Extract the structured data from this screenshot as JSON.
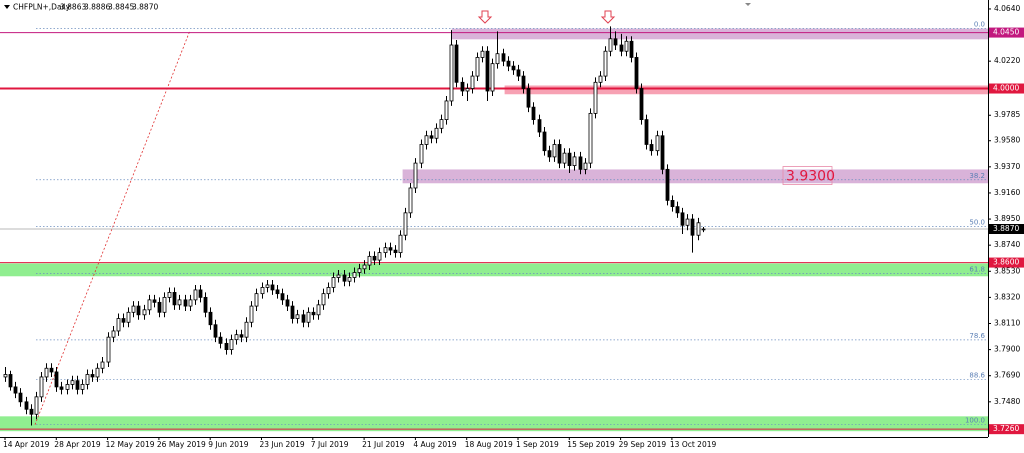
{
  "chart_data": {
    "type": "candlestick",
    "title": "CHFPLN+,Daily",
    "header_quote": [
      "3.8863",
      "3.8886",
      "3.8845",
      "3.8870"
    ],
    "categories": [
      "14 Apr 2019",
      null,
      null,
      null,
      null,
      null,
      null,
      null,
      null,
      null,
      "28 Apr 2019",
      null,
      null,
      null,
      null,
      null,
      null,
      null,
      null,
      null,
      "12 May 2019",
      null,
      null,
      null,
      null,
      null,
      null,
      null,
      null,
      null,
      "26 May 2019",
      null,
      null,
      null,
      null,
      null,
      null,
      null,
      null,
      null,
      "9 Jun 2019",
      null,
      null,
      null,
      null,
      null,
      null,
      null,
      null,
      null,
      "23 Jun 2019",
      null,
      null,
      null,
      null,
      null,
      null,
      null,
      null,
      null,
      "7 Jul 2019",
      null,
      null,
      null,
      null,
      null,
      null,
      null,
      null,
      null,
      "21 Jul 2019",
      null,
      null,
      null,
      null,
      null,
      null,
      null,
      null,
      null,
      "4 Aug 2019",
      null,
      null,
      null,
      null,
      null,
      null,
      null,
      null,
      null,
      "18 Aug 2019",
      null,
      null,
      null,
      null,
      null,
      null,
      null,
      null,
      null,
      "1 Sep 2019",
      null,
      null,
      null,
      null,
      null,
      null,
      null,
      null,
      null,
      "15 Sep 2019",
      null,
      null,
      null,
      null,
      null,
      null,
      null,
      null,
      null,
      "29 Sep 2019",
      null,
      null,
      null,
      null,
      null,
      null,
      null,
      null,
      null,
      "13 Oct 2019",
      null,
      null,
      null,
      null,
      null,
      null
    ],
    "ohlc": [
      [
        3.768,
        3.776,
        3.764,
        3.77
      ],
      [
        3.77,
        3.773,
        3.757,
        3.76
      ],
      [
        3.76,
        3.764,
        3.751,
        3.755
      ],
      [
        3.755,
        3.759,
        3.744,
        3.748
      ],
      [
        3.748,
        3.752,
        3.738,
        3.742
      ],
      [
        3.742,
        3.746,
        3.729,
        3.738
      ],
      [
        3.738,
        3.756,
        3.734,
        3.752
      ],
      [
        3.752,
        3.772,
        3.748,
        3.768
      ],
      [
        3.768,
        3.779,
        3.764,
        3.775
      ],
      [
        3.775,
        3.779,
        3.768,
        3.772
      ],
      [
        3.772,
        3.776,
        3.756,
        3.76
      ],
      [
        3.76,
        3.764,
        3.754,
        3.758
      ],
      [
        3.758,
        3.766,
        3.754,
        3.762
      ],
      [
        3.762,
        3.769,
        3.758,
        3.765
      ],
      [
        3.765,
        3.769,
        3.754,
        3.758
      ],
      [
        3.758,
        3.766,
        3.754,
        3.762
      ],
      [
        3.762,
        3.774,
        3.758,
        3.77
      ],
      [
        3.77,
        3.774,
        3.764,
        3.768
      ],
      [
        3.768,
        3.779,
        3.764,
        3.775
      ],
      [
        3.775,
        3.784,
        3.771,
        3.78
      ],
      [
        3.78,
        3.804,
        3.776,
        3.8
      ],
      [
        3.8,
        3.809,
        3.796,
        3.805
      ],
      [
        3.805,
        3.819,
        3.801,
        3.815
      ],
      [
        3.815,
        3.819,
        3.808,
        3.812
      ],
      [
        3.812,
        3.824,
        3.808,
        3.82
      ],
      [
        3.82,
        3.829,
        3.816,
        3.825
      ],
      [
        3.825,
        3.829,
        3.814,
        3.818
      ],
      [
        3.818,
        3.826,
        3.814,
        3.822
      ],
      [
        3.822,
        3.834,
        3.818,
        3.83
      ],
      [
        3.83,
        3.834,
        3.824,
        3.828
      ],
      [
        3.828,
        3.832,
        3.816,
        3.82
      ],
      [
        3.82,
        3.836,
        3.816,
        3.832
      ],
      [
        3.832,
        3.84,
        3.828,
        3.836
      ],
      [
        3.836,
        3.84,
        3.822,
        3.826
      ],
      [
        3.826,
        3.834,
        3.822,
        3.83
      ],
      [
        3.83,
        3.834,
        3.821,
        3.825
      ],
      [
        3.825,
        3.834,
        3.821,
        3.83
      ],
      [
        3.83,
        3.842,
        3.826,
        3.838
      ],
      [
        3.838,
        3.842,
        3.828,
        3.832
      ],
      [
        3.832,
        3.836,
        3.816,
        3.82
      ],
      [
        3.82,
        3.824,
        3.806,
        3.81
      ],
      [
        3.81,
        3.814,
        3.796,
        3.8
      ],
      [
        3.8,
        3.804,
        3.791,
        3.795
      ],
      [
        3.795,
        3.799,
        3.786,
        3.79
      ],
      [
        3.79,
        3.802,
        3.786,
        3.798
      ],
      [
        3.798,
        3.806,
        3.794,
        3.802
      ],
      [
        3.802,
        3.806,
        3.796,
        3.8
      ],
      [
        3.8,
        3.816,
        3.796,
        3.812
      ],
      [
        3.812,
        3.829,
        3.808,
        3.825
      ],
      [
        3.825,
        3.839,
        3.821,
        3.835
      ],
      [
        3.835,
        3.844,
        3.831,
        3.84
      ],
      [
        3.84,
        3.846,
        3.836,
        3.842
      ],
      [
        3.842,
        3.846,
        3.834,
        3.838
      ],
      [
        3.838,
        3.842,
        3.831,
        3.835
      ],
      [
        3.835,
        3.839,
        3.826,
        3.83
      ],
      [
        3.83,
        3.834,
        3.821,
        3.825
      ],
      [
        3.825,
        3.829,
        3.811,
        3.815
      ],
      [
        3.815,
        3.822,
        3.811,
        3.818
      ],
      [
        3.818,
        3.822,
        3.808,
        3.812
      ],
      [
        3.812,
        3.824,
        3.808,
        3.82
      ],
      [
        3.82,
        3.824,
        3.814,
        3.818
      ],
      [
        3.818,
        3.83,
        3.814,
        3.826
      ],
      [
        3.826,
        3.839,
        3.822,
        3.835
      ],
      [
        3.835,
        3.844,
        3.831,
        3.84
      ],
      [
        3.84,
        3.852,
        3.836,
        3.848
      ],
      [
        3.848,
        3.854,
        3.844,
        3.85
      ],
      [
        3.85,
        3.854,
        3.841,
        3.845
      ],
      [
        3.845,
        3.852,
        3.841,
        3.848
      ],
      [
        3.848,
        3.856,
        3.844,
        3.852
      ],
      [
        3.852,
        3.859,
        3.848,
        3.855
      ],
      [
        3.855,
        3.862,
        3.851,
        3.858
      ],
      [
        3.858,
        3.869,
        3.854,
        3.865
      ],
      [
        3.865,
        3.869,
        3.858,
        3.862
      ],
      [
        3.862,
        3.872,
        3.858,
        3.868
      ],
      [
        3.868,
        3.876,
        3.864,
        3.872
      ],
      [
        3.872,
        3.876,
        3.866,
        3.87
      ],
      [
        3.87,
        3.874,
        3.864,
        3.868
      ],
      [
        3.868,
        3.886,
        3.864,
        3.882
      ],
      [
        3.882,
        3.904,
        3.878,
        3.9
      ],
      [
        3.9,
        3.924,
        3.896,
        3.92
      ],
      [
        3.92,
        3.944,
        3.916,
        3.94
      ],
      [
        3.94,
        3.959,
        3.936,
        3.955
      ],
      [
        3.955,
        3.966,
        3.951,
        3.962
      ],
      [
        3.962,
        3.966,
        3.956,
        3.96
      ],
      [
        3.96,
        3.972,
        3.956,
        3.968
      ],
      [
        3.968,
        3.979,
        3.964,
        3.975
      ],
      [
        3.975,
        3.994,
        3.971,
        3.99
      ],
      [
        3.99,
        4.047,
        3.986,
        4.035
      ],
      [
        4.035,
        4.039,
        4.001,
        4.005
      ],
      [
        4.005,
        4.009,
        3.994,
        3.998
      ],
      [
        3.998,
        4.004,
        3.99,
        4.0
      ],
      [
        4.0,
        4.014,
        3.996,
        4.01
      ],
      [
        4.01,
        4.029,
        4.006,
        4.025
      ],
      [
        4.025,
        4.034,
        4.021,
        4.03
      ],
      [
        4.03,
        4.034,
        3.99,
        3.998
      ],
      [
        3.998,
        4.024,
        3.994,
        4.02
      ],
      [
        4.02,
        4.046,
        4.016,
        4.028
      ],
      [
        4.028,
        4.032,
        4.018,
        4.022
      ],
      [
        4.022,
        4.026,
        4.014,
        4.018
      ],
      [
        4.018,
        4.022,
        4.011,
        4.015
      ],
      [
        4.015,
        4.019,
        4.006,
        4.01
      ],
      [
        4.01,
        4.014,
        3.996,
        4.0
      ],
      [
        4.0,
        4.004,
        3.981,
        3.985
      ],
      [
        3.985,
        3.989,
        3.971,
        3.975
      ],
      [
        3.975,
        3.979,
        3.961,
        3.965
      ],
      [
        3.965,
        3.969,
        3.946,
        3.95
      ],
      [
        3.95,
        3.954,
        3.941,
        3.945
      ],
      [
        3.945,
        3.959,
        3.941,
        3.955
      ],
      [
        3.955,
        3.959,
        3.936,
        3.94
      ],
      [
        3.94,
        3.952,
        3.936,
        3.948
      ],
      [
        3.948,
        3.952,
        3.932,
        3.938
      ],
      [
        3.938,
        3.949,
        3.934,
        3.945
      ],
      [
        3.945,
        3.949,
        3.931,
        3.935
      ],
      [
        3.935,
        3.944,
        3.931,
        3.94
      ],
      [
        3.94,
        3.984,
        3.936,
        3.98
      ],
      [
        3.98,
        4.009,
        3.976,
        4.005
      ],
      [
        4.005,
        4.014,
        4.001,
        4.01
      ],
      [
        4.01,
        4.034,
        4.006,
        4.03
      ],
      [
        4.03,
        4.05,
        4.026,
        4.04
      ],
      [
        4.04,
        4.046,
        4.031,
        4.035
      ],
      [
        4.035,
        4.044,
        4.026,
        4.03
      ],
      [
        4.03,
        4.042,
        4.026,
        4.038
      ],
      [
        4.038,
        4.042,
        4.021,
        4.025
      ],
      [
        4.025,
        4.029,
        3.996,
        4.0
      ],
      [
        4.0,
        4.004,
        3.971,
        3.975
      ],
      [
        3.975,
        3.979,
        3.951,
        3.955
      ],
      [
        3.955,
        3.959,
        3.946,
        3.95
      ],
      [
        3.95,
        3.966,
        3.946,
        3.962
      ],
      [
        3.962,
        3.966,
        3.931,
        3.935
      ],
      [
        3.935,
        3.939,
        3.906,
        3.91
      ],
      [
        3.91,
        3.914,
        3.901,
        3.905
      ],
      [
        3.905,
        3.909,
        3.896,
        3.9
      ],
      [
        3.9,
        3.904,
        3.883,
        3.89
      ],
      [
        3.89,
        3.899,
        3.886,
        3.895
      ],
      [
        3.895,
        3.899,
        3.868,
        3.882
      ],
      [
        3.882,
        3.896,
        3.878,
        3.892
      ],
      [
        3.8863,
        3.8886,
        3.8845,
        3.887
      ]
    ],
    "ylim": [
      3.7197,
      4.0712
    ],
    "yticks": [
      {
        "value": 4.064,
        "label": "4.0640"
      },
      {
        "value": 4.022,
        "label": "4.0220"
      },
      {
        "value": 3.9785,
        "label": "3.9785"
      },
      {
        "value": 3.958,
        "label": "3.9580"
      },
      {
        "value": 3.937,
        "label": "3.9370"
      },
      {
        "value": 3.916,
        "label": "3.9160"
      },
      {
        "value": 3.895,
        "label": "3.8950"
      },
      {
        "value": 3.874,
        "label": "3.8740"
      },
      {
        "value": 3.853,
        "label": "3.8530"
      },
      {
        "value": 3.832,
        "label": "3.8320"
      },
      {
        "value": 3.811,
        "label": "3.8110"
      },
      {
        "value": 3.79,
        "label": "3.7900"
      },
      {
        "value": 3.769,
        "label": "3.7690"
      },
      {
        "value": 3.748,
        "label": "3.7480"
      }
    ],
    "up_color": "#ffffff",
    "down_color": "#000000",
    "levels": [
      {
        "value": 4.045,
        "label": "4.0450",
        "color": "#c2187e"
      },
      {
        "value": 4.0,
        "label": "4.0000",
        "color": "#e0173f"
      },
      {
        "value": 3.887,
        "label": "3.8870",
        "color": "#000000"
      },
      {
        "value": 3.86,
        "label": "3.8600",
        "color": "#e0173f"
      },
      {
        "value": 3.726,
        "label": "3.7260",
        "color": "#e0173f"
      }
    ],
    "zones": [
      {
        "from": 4.0399,
        "to": 4.0479,
        "color": "#d9b3d9"
      },
      {
        "from": 3.9957,
        "to": 4.0021,
        "color": "#f7a1b3"
      },
      {
        "from": 3.9241,
        "to": 3.9346,
        "color": "#d9b3d9"
      },
      {
        "from": 3.8493,
        "to": 3.859,
        "color": "#90ee90"
      },
      {
        "from": 3.7247,
        "to": 3.736,
        "color": "#90ee90"
      }
    ],
    "fibonacci": [
      {
        "value": 4.0483,
        "label": "0.0"
      },
      {
        "value": 3.9266,
        "label": "38.2"
      },
      {
        "value": 3.889,
        "label": "50.0"
      },
      {
        "value": 3.8513,
        "label": "61.8"
      },
      {
        "value": 3.7978,
        "label": "78.6"
      },
      {
        "value": 3.7659,
        "label": "88.6"
      },
      {
        "value": 3.7296,
        "label": "100.0"
      }
    ],
    "annotation": {
      "value": 3.93,
      "label": "3.9300"
    }
  }
}
